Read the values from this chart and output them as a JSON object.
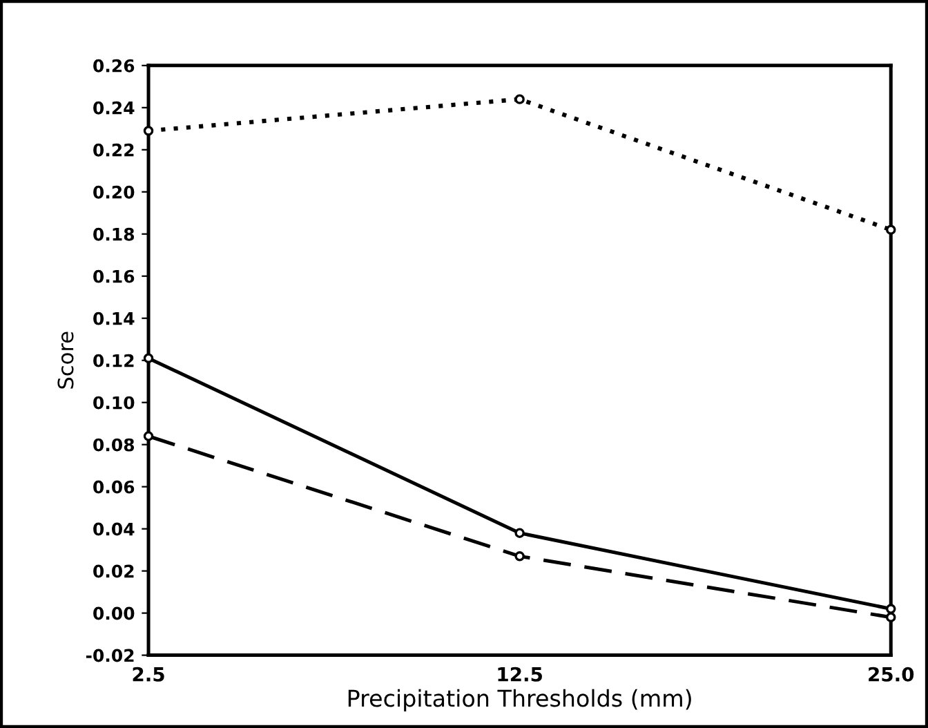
{
  "chart_data": {
    "type": "line",
    "xlabel": "Precipitation Thresholds (mm)",
    "ylabel": "Score",
    "categories": [
      "2.5",
      "12.5",
      "25.0"
    ],
    "series": [
      {
        "color": "#000000",
        "line_style": "dotted",
        "values": [
          0.229,
          0.244,
          0.182
        ]
      },
      {
        "color": "#000000",
        "line_style": "solid",
        "values": [
          0.121,
          0.038,
          0.002
        ]
      },
      {
        "color": "#000000",
        "line_style": "dashed",
        "values": [
          0.084,
          0.027,
          -0.002
        ]
      }
    ],
    "ylim": [
      -0.02,
      0.26
    ],
    "yticks": [
      {
        "value": -0.02,
        "label": "-0.02"
      },
      {
        "value": 0,
        "label": "0.00"
      },
      0.02,
      0.04,
      0.06,
      0.08,
      {
        "value": 0.1,
        "label": "0.10"
      },
      0.12,
      0.14,
      0.16,
      0.18,
      {
        "value": 0.2,
        "label": "0.20"
      },
      0.22,
      0.24,
      0.26
    ],
    "marker": "circle",
    "grid": false,
    "legend": false
  }
}
